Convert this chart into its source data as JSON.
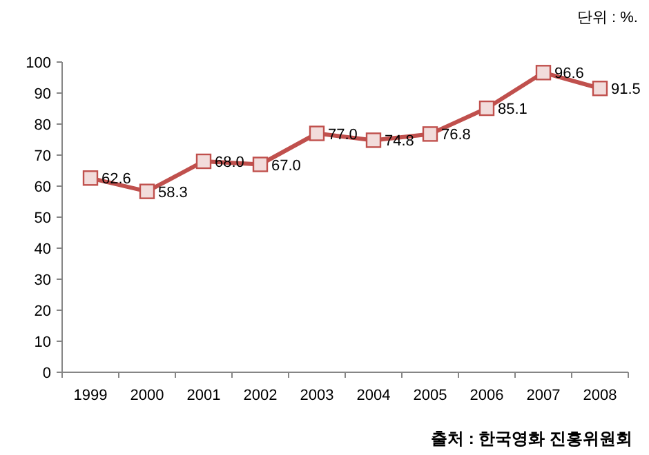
{
  "chart_data": {
    "type": "line",
    "categories": [
      "1999",
      "2000",
      "2001",
      "2002",
      "2003",
      "2004",
      "2005",
      "2006",
      "2007",
      "2008"
    ],
    "series": [
      {
        "color": "#c0504d",
        "values": [
          62.6,
          58.3,
          68.0,
          67.0,
          77.0,
          74.8,
          76.8,
          85.1,
          96.6,
          91.5
        ],
        "value_labels": [
          "62.6",
          "58.3",
          "68.0",
          "67.0",
          "77.0",
          "74.8",
          "76.8",
          "85.1",
          "96.6",
          "91.5"
        ]
      }
    ],
    "ylim": [
      0,
      100
    ],
    "yticks": [
      0,
      10,
      20,
      30,
      40,
      50,
      60,
      70,
      80,
      90,
      100
    ],
    "marker": "square",
    "line_style": "solid",
    "grid": false,
    "annotations": [
      "단위 : %.",
      "출처 : 한국영화 진흥위원회"
    ]
  }
}
